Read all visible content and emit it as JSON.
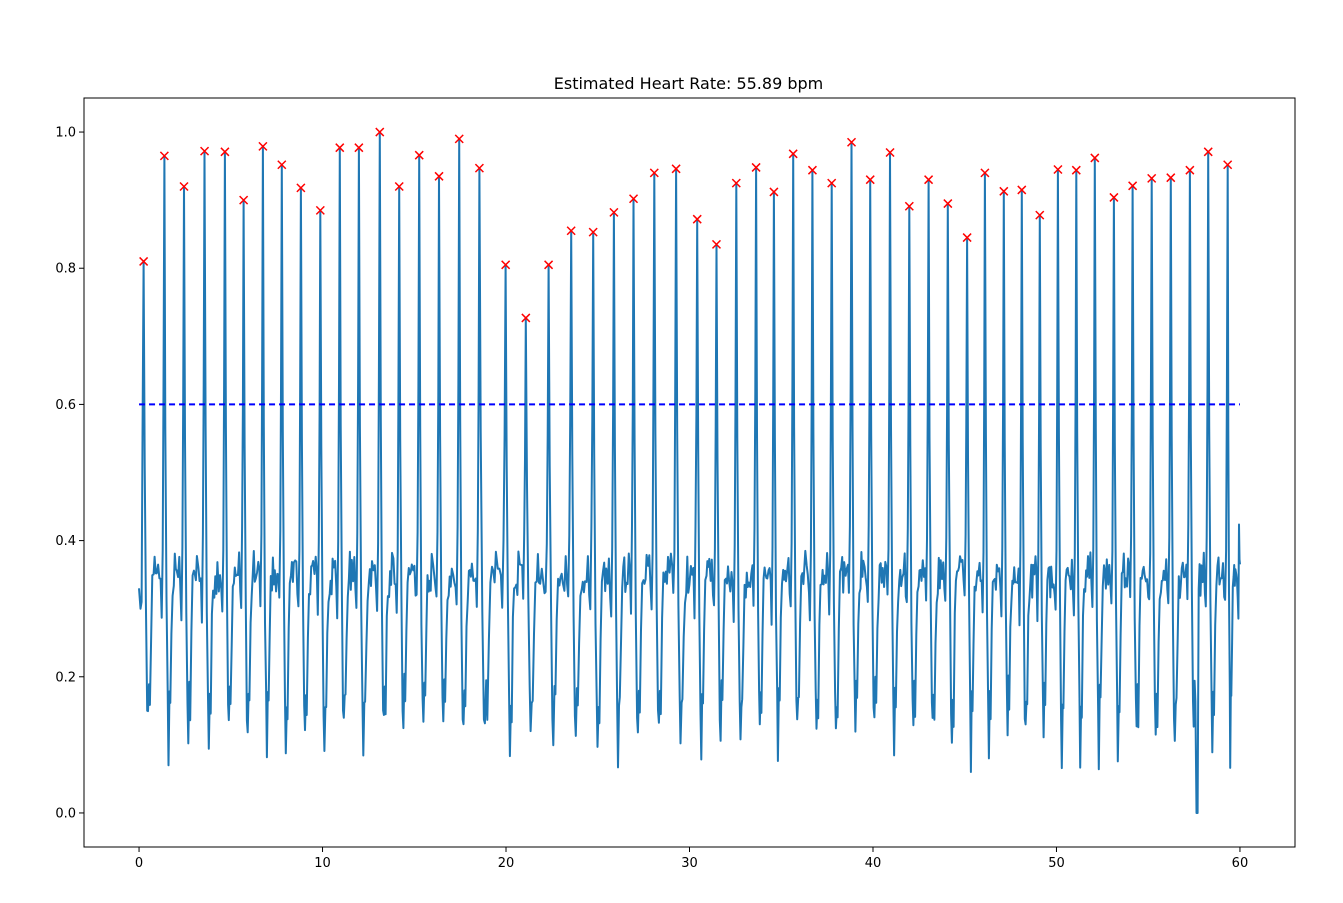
{
  "chart_data": {
    "type": "line",
    "title": "Estimated Heart Rate: 55.89 bpm",
    "xlabel": "",
    "ylabel": "",
    "xlim": [
      -3,
      63
    ],
    "ylim": [
      -0.05,
      1.05
    ],
    "x_ticks": [
      0,
      10,
      20,
      30,
      40,
      50,
      60
    ],
    "y_ticks": [
      0.0,
      0.2,
      0.4,
      0.6,
      0.8,
      1.0
    ],
    "x_tick_labels": [
      "0",
      "10",
      "20",
      "30",
      "40",
      "50",
      "60"
    ],
    "y_tick_labels": [
      "0.0",
      "0.2",
      "0.4",
      "0.6",
      "0.8",
      "1.0"
    ],
    "grid": false,
    "threshold": {
      "y": 0.6,
      "x_start": 0,
      "x_end": 60,
      "style": "dashed",
      "color": "#0000ff"
    },
    "signal_color": "#1f77b4",
    "peak_color": "#ff0000",
    "peaks": {
      "x": [
        0.25,
        1.38,
        2.45,
        3.57,
        4.68,
        5.7,
        6.75,
        7.78,
        8.82,
        9.88,
        10.94,
        11.98,
        13.12,
        14.18,
        15.27,
        16.35,
        17.45,
        18.55,
        19.98,
        21.08,
        22.32,
        23.55,
        24.75,
        25.88,
        26.95,
        28.08,
        29.27,
        30.42,
        31.47,
        32.55,
        33.63,
        34.6,
        35.65,
        36.7,
        37.75,
        38.83,
        39.85,
        40.93,
        41.98,
        43.03,
        44.08,
        45.13,
        46.1,
        47.13,
        48.11,
        49.09,
        50.08,
        51.08,
        52.09,
        53.13,
        54.15,
        55.19,
        56.23,
        57.27,
        58.27,
        59.33
      ],
      "y": [
        0.81,
        0.965,
        0.92,
        0.972,
        0.971,
        0.9,
        0.979,
        0.952,
        0.918,
        0.885,
        0.977,
        0.977,
        1.0,
        0.92,
        0.966,
        0.935,
        0.99,
        0.947,
        0.805,
        0.727,
        0.805,
        0.855,
        0.853,
        0.882,
        0.902,
        0.94,
        0.946,
        0.872,
        0.835,
        0.925,
        0.948,
        0.912,
        0.968,
        0.944,
        0.925,
        0.985,
        0.93,
        0.97,
        0.891,
        0.93,
        0.895,
        0.845,
        0.94,
        0.913,
        0.915,
        0.878,
        0.945,
        0.944,
        0.962,
        0.904,
        0.921,
        0.932,
        0.933,
        0.944,
        0.971,
        0.952
      ]
    }
  }
}
